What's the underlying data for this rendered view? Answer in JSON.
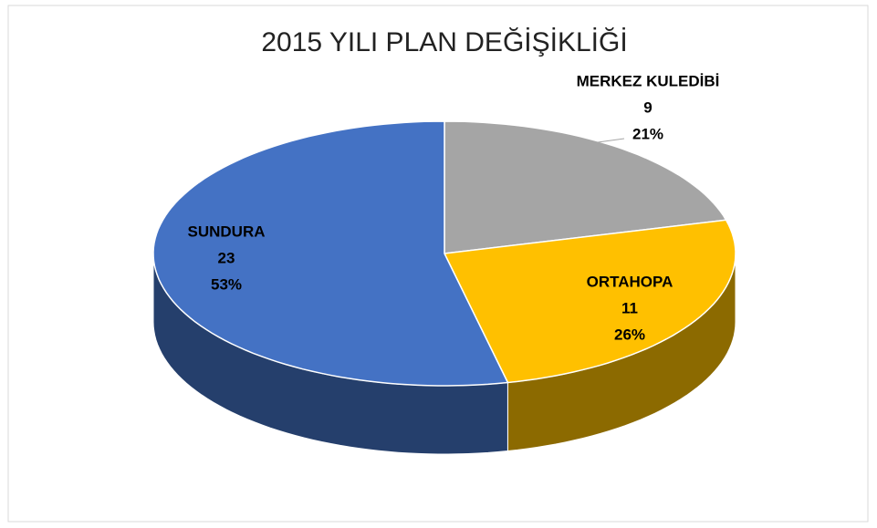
{
  "chart_data": {
    "type": "pie3d",
    "title": "2015 YILI PLAN DEĞİŞİKLİĞİ",
    "categories": [
      "MERKEZ KULEDİBİ",
      "ORTAHOPA",
      "SUNDURA"
    ],
    "values": [
      9,
      11,
      23
    ],
    "percent_labels": [
      "21%",
      "26%",
      "53%"
    ],
    "colors": [
      "#a5a5a5",
      "#ffc000",
      "#4472c4"
    ]
  }
}
